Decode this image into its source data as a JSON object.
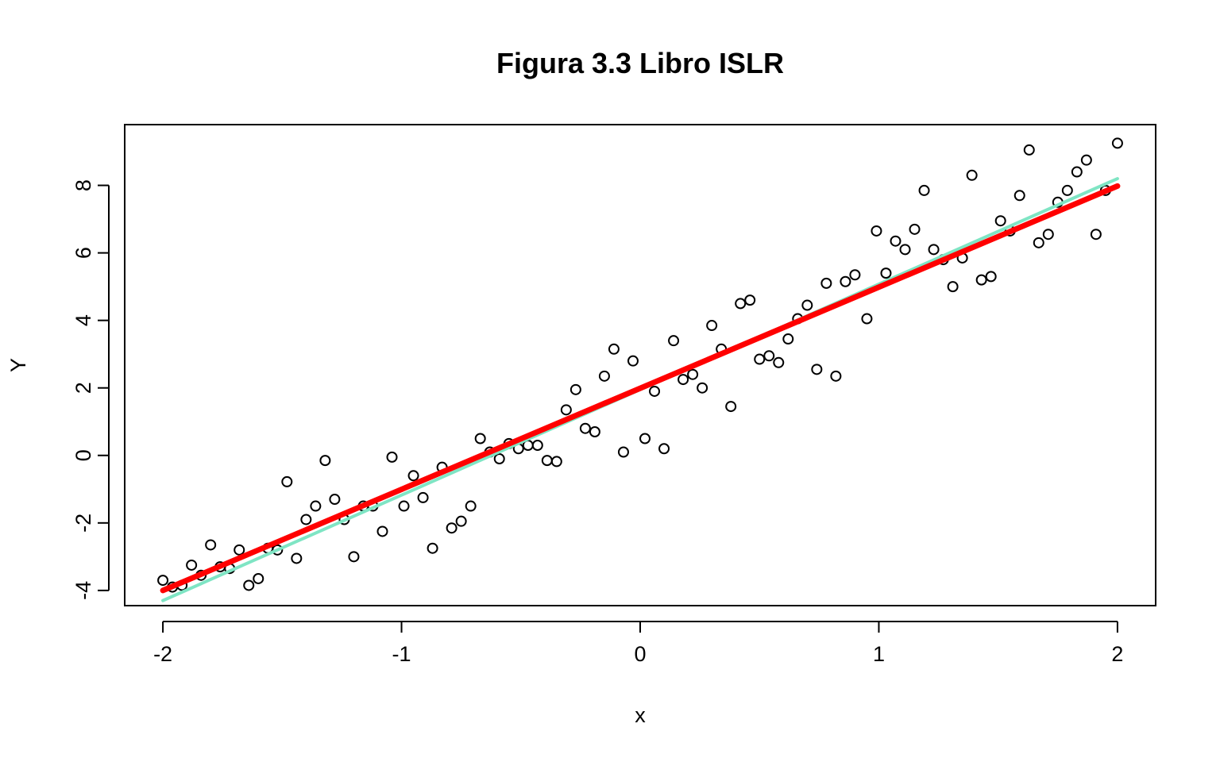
{
  "chart_data": {
    "type": "scatter",
    "title": "Figura 3.3 Libro ISLR",
    "xlabel": "x",
    "ylabel": "Y",
    "xlim": [
      -2.16,
      2.16
    ],
    "ylim": [
      -4.45,
      9.8
    ],
    "xticks": [
      -2,
      -1,
      0,
      1,
      2
    ],
    "yticks": [
      -4,
      -2,
      0,
      2,
      4,
      6,
      8
    ],
    "xtick_labels": [
      "-2",
      "-1",
      "0",
      "1",
      "2"
    ],
    "ytick_labels": [
      "-4",
      "-2",
      "0",
      "2",
      "4",
      "6",
      "8"
    ],
    "grid": false,
    "colors": {
      "points": "#000000",
      "true_line": "#7fe5c4",
      "fitted_line": "#ff0000"
    },
    "series": [
      {
        "type": "scatter",
        "points": [
          [
            -2.0,
            -3.7
          ],
          [
            -1.96,
            -3.9
          ],
          [
            -1.92,
            -3.85
          ],
          [
            -1.88,
            -3.25
          ],
          [
            -1.84,
            -3.55
          ],
          [
            -1.8,
            -2.65
          ],
          [
            -1.76,
            -3.3
          ],
          [
            -1.72,
            -3.35
          ],
          [
            -1.68,
            -2.8
          ],
          [
            -1.64,
            -3.85
          ],
          [
            -1.6,
            -3.65
          ],
          [
            -1.56,
            -2.75
          ],
          [
            -1.52,
            -2.8
          ],
          [
            -1.48,
            -0.78
          ],
          [
            -1.44,
            -3.05
          ],
          [
            -1.4,
            -1.9
          ],
          [
            -1.36,
            -1.5
          ],
          [
            -1.32,
            -0.15
          ],
          [
            -1.28,
            -1.3
          ],
          [
            -1.24,
            -1.9
          ],
          [
            -1.2,
            -3.0
          ],
          [
            -1.16,
            -1.5
          ],
          [
            -1.12,
            -1.5
          ],
          [
            -1.08,
            -2.25
          ],
          [
            -1.04,
            -0.05
          ],
          [
            -0.99,
            -1.5
          ],
          [
            -0.95,
            -0.6
          ],
          [
            -0.91,
            -1.25
          ],
          [
            -0.87,
            -2.75
          ],
          [
            -0.83,
            -0.35
          ],
          [
            -0.79,
            -2.15
          ],
          [
            -0.75,
            -1.95
          ],
          [
            -0.71,
            -1.5
          ],
          [
            -0.67,
            0.5
          ],
          [
            -0.63,
            0.1
          ],
          [
            -0.59,
            -0.1
          ],
          [
            -0.55,
            0.35
          ],
          [
            -0.51,
            0.2
          ],
          [
            -0.47,
            0.3
          ],
          [
            -0.43,
            0.3
          ],
          [
            -0.39,
            -0.15
          ],
          [
            -0.35,
            -0.18
          ],
          [
            -0.31,
            1.35
          ],
          [
            -0.27,
            1.95
          ],
          [
            -0.23,
            0.8
          ],
          [
            -0.19,
            0.7
          ],
          [
            -0.15,
            2.35
          ],
          [
            -0.11,
            3.15
          ],
          [
            -0.07,
            0.1
          ],
          [
            -0.03,
            2.8
          ],
          [
            0.02,
            0.5
          ],
          [
            0.06,
            1.9
          ],
          [
            0.1,
            0.2
          ],
          [
            0.14,
            3.4
          ],
          [
            0.18,
            2.25
          ],
          [
            0.22,
            2.4
          ],
          [
            0.26,
            2.0
          ],
          [
            0.3,
            3.85
          ],
          [
            0.34,
            3.15
          ],
          [
            0.38,
            1.45
          ],
          [
            0.42,
            4.5
          ],
          [
            0.46,
            4.6
          ],
          [
            0.5,
            2.85
          ],
          [
            0.54,
            2.95
          ],
          [
            0.58,
            2.75
          ],
          [
            0.62,
            3.45
          ],
          [
            0.66,
            4.05
          ],
          [
            0.7,
            4.45
          ],
          [
            0.74,
            2.55
          ],
          [
            0.78,
            5.1
          ],
          [
            0.82,
            2.35
          ],
          [
            0.86,
            5.15
          ],
          [
            0.9,
            5.35
          ],
          [
            0.95,
            4.05
          ],
          [
            0.99,
            6.65
          ],
          [
            1.03,
            5.4
          ],
          [
            1.07,
            6.35
          ],
          [
            1.11,
            6.1
          ],
          [
            1.15,
            6.7
          ],
          [
            1.19,
            7.85
          ],
          [
            1.23,
            6.1
          ],
          [
            1.27,
            5.8
          ],
          [
            1.31,
            5.0
          ],
          [
            1.35,
            5.85
          ],
          [
            1.39,
            8.3
          ],
          [
            1.43,
            5.2
          ],
          [
            1.47,
            5.3
          ],
          [
            1.51,
            6.95
          ],
          [
            1.55,
            6.65
          ],
          [
            1.59,
            7.7
          ],
          [
            1.63,
            9.05
          ],
          [
            1.67,
            6.3
          ],
          [
            1.71,
            6.55
          ],
          [
            1.75,
            7.5
          ],
          [
            1.79,
            7.85
          ],
          [
            1.83,
            8.4
          ],
          [
            1.87,
            8.75
          ],
          [
            1.91,
            6.55
          ],
          [
            1.95,
            7.85
          ],
          [
            2.0,
            9.25
          ]
        ]
      },
      {
        "type": "line",
        "points": [
          [
            -2.0,
            -4.3
          ],
          [
            2.0,
            8.2
          ]
        ]
      },
      {
        "type": "line",
        "points": [
          [
            -2.0,
            -4.0
          ],
          [
            2.0,
            7.98
          ]
        ]
      }
    ]
  }
}
